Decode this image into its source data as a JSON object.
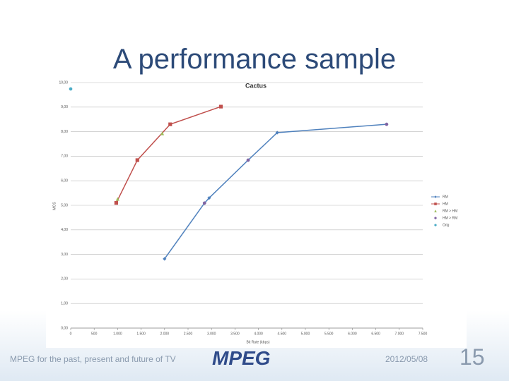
{
  "slide": {
    "title": "A performance sample",
    "footer": "MPEG for the past, present and future of TV",
    "date": "2012/05/08",
    "page": "15",
    "logo": "MPEG"
  },
  "chart_data": {
    "type": "line",
    "title": "Cactus",
    "x_label": "Bit Rate (kbps)",
    "y_label": "MOS",
    "xlim": [
      0,
      7500
    ],
    "xticks": [
      0,
      500,
      {
        "value": 1000,
        "label": "1.000"
      },
      {
        "value": 1500,
        "label": "1.500"
      },
      {
        "value": 2000,
        "label": "2.000"
      },
      {
        "value": 2500,
        "label": "2.500"
      },
      {
        "value": 3000,
        "label": "3.000"
      },
      {
        "value": 3500,
        "label": "3.500"
      },
      {
        "value": 4000,
        "label": "4.000"
      },
      {
        "value": 4500,
        "label": "4.500"
      },
      {
        "value": 5000,
        "label": "5.000"
      },
      {
        "value": 5500,
        "label": "5.500"
      },
      {
        "value": 6000,
        "label": "6.000"
      },
      {
        "value": 6500,
        "label": "6.500"
      },
      {
        "value": 7000,
        "label": "7.000"
      },
      {
        "value": 7500,
        "label": "7.500"
      }
    ],
    "ylim": [
      0,
      10
    ],
    "yticks": [
      {
        "value": 0,
        "label": "0,00"
      },
      {
        "value": 1,
        "label": "1,00"
      },
      {
        "value": 2,
        "label": "2,00"
      },
      {
        "value": 3,
        "label": "3,00"
      },
      {
        "value": 4,
        "label": "4,00"
      },
      {
        "value": 5,
        "label": "5,00"
      },
      {
        "value": 6,
        "label": "6,00"
      },
      {
        "value": 7,
        "label": "7,00"
      },
      {
        "value": 8,
        "label": "8,00"
      },
      {
        "value": 9,
        "label": "9,00"
      },
      {
        "value": 10,
        "label": "10,00"
      }
    ],
    "grid": true,
    "series": [
      {
        "name": "RM",
        "color": "#4f81bd",
        "marker": "diamond",
        "line": true,
        "x": [
          2000,
          2850,
          2950,
          3780,
          4400,
          6730
        ],
        "values": [
          2.82,
          5.09,
          5.3,
          6.84,
          7.96,
          8.3
        ]
      },
      {
        "name": "HM",
        "color": "#c0504d",
        "marker": "square",
        "line": true,
        "x": [
          970,
          1420,
          2120,
          3200
        ],
        "values": [
          5.1,
          6.84,
          8.3,
          9.02
        ]
      },
      {
        "name": "RM > HM",
        "color": "#9bbb59",
        "marker": "triangle",
        "line": false,
        "x": [
          1000,
          1950
        ],
        "values": [
          5.26,
          7.93
        ]
      },
      {
        "name": "HM > RM",
        "color": "#8064a2",
        "marker": "circle",
        "line": false,
        "x": [
          2850,
          3780,
          6730
        ],
        "values": [
          5.09,
          6.84,
          8.3
        ]
      },
      {
        "name": "Orig",
        "color": "#4bacc6",
        "marker": "circle",
        "line": false,
        "x": [
          0
        ],
        "values": [
          9.74
        ]
      }
    ]
  }
}
